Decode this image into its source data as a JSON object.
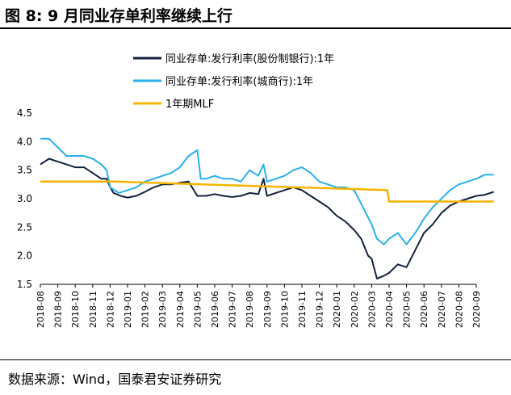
{
  "header": {
    "title": "图 8:  9 月同业存单利率继续上行"
  },
  "footer": {
    "source": "数据来源：Wind，国泰君安证券研究"
  },
  "colors": {
    "navy": "#14213d",
    "lightblue": "#2ab0ea",
    "gold": "#f5b400"
  },
  "chart_data": {
    "type": "line",
    "ylim": [
      1.5,
      4.5
    ],
    "yticks": [
      "1.5",
      "2.0",
      "2.5",
      "3.0",
      "3.5",
      "4.0",
      "4.5"
    ],
    "xticks": [
      "2018-08",
      "2018-09",
      "2018-10",
      "2018-11",
      "2018-12",
      "2019-01",
      "2019-02",
      "2019-03",
      "2019-04",
      "2019-05",
      "2019-06",
      "2019-07",
      "2019-08",
      "2019-09",
      "2019-10",
      "2019-11",
      "2019-12",
      "2020-01",
      "2020-02",
      "2020-03",
      "2020-04",
      "2020-05",
      "2020-06",
      "2020-07",
      "2020-08",
      "2020-09"
    ],
    "legend": "top",
    "series": [
      {
        "name": "同业存单:发行利率(股份制银行):1年",
        "color": "#14213d",
        "x": [
          0,
          0.5,
          1.0,
          1.5,
          2.0,
          2.5,
          3.0,
          3.5,
          3.8,
          4.0,
          4.2,
          4.6,
          5.0,
          5.5,
          6.0,
          6.5,
          7.0,
          7.5,
          8.0,
          8.5,
          9.0,
          9.5,
          10.0,
          10.5,
          11.0,
          11.5,
          12.0,
          12.5,
          12.8,
          13.0,
          13.5,
          14.0,
          14.5,
          15.0,
          15.5,
          16.0,
          16.5,
          17.0,
          17.5,
          18.0,
          18.4,
          18.8,
          19.0,
          19.3,
          19.7,
          20.0,
          20.5,
          21.0,
          21.5,
          22.0,
          22.5,
          23.0,
          23.5,
          24.0,
          24.5,
          25.0,
          25.5,
          26.0
        ],
        "y": [
          3.6,
          3.7,
          3.65,
          3.6,
          3.55,
          3.55,
          3.45,
          3.35,
          3.35,
          3.2,
          3.1,
          3.05,
          3.02,
          3.05,
          3.12,
          3.2,
          3.25,
          3.25,
          3.28,
          3.3,
          3.05,
          3.05,
          3.08,
          3.05,
          3.03,
          3.05,
          3.1,
          3.08,
          3.35,
          3.05,
          3.1,
          3.15,
          3.2,
          3.15,
          3.05,
          2.95,
          2.85,
          2.7,
          2.6,
          2.45,
          2.3,
          2.0,
          1.95,
          1.6,
          1.65,
          1.7,
          1.85,
          1.8,
          2.1,
          2.4,
          2.55,
          2.75,
          2.88,
          2.95,
          3.0,
          3.05,
          3.07,
          3.12
        ]
      },
      {
        "name": "同业存单:发行利率(城商行):1年",
        "color": "#2ab0ea",
        "x": [
          0,
          0.5,
          1.0,
          1.5,
          2.0,
          2.5,
          3.0,
          3.5,
          3.8,
          4.0,
          4.5,
          5.0,
          5.5,
          6.0,
          6.5,
          7.0,
          7.5,
          8.0,
          8.5,
          9.0,
          9.2,
          9.5,
          10.0,
          10.5,
          11.0,
          11.5,
          12.0,
          12.5,
          12.8,
          13.0,
          13.5,
          14.0,
          14.5,
          15.0,
          15.5,
          16.0,
          16.5,
          17.0,
          17.5,
          18.0,
          18.5,
          19.0,
          19.3,
          19.7,
          20.0,
          20.5,
          21.0,
          21.5,
          22.0,
          22.5,
          23.0,
          23.5,
          24.0,
          24.5,
          25.0,
          25.5,
          26.0
        ],
        "y": [
          4.05,
          4.05,
          3.9,
          3.75,
          3.75,
          3.75,
          3.7,
          3.6,
          3.5,
          3.2,
          3.1,
          3.15,
          3.2,
          3.3,
          3.35,
          3.4,
          3.45,
          3.55,
          3.75,
          3.85,
          3.35,
          3.35,
          3.4,
          3.35,
          3.35,
          3.3,
          3.5,
          3.4,
          3.6,
          3.3,
          3.35,
          3.4,
          3.5,
          3.55,
          3.45,
          3.3,
          3.25,
          3.2,
          3.2,
          3.15,
          2.85,
          2.55,
          2.3,
          2.2,
          2.3,
          2.4,
          2.2,
          2.4,
          2.65,
          2.85,
          3.0,
          3.15,
          3.25,
          3.3,
          3.35,
          3.42,
          3.42
        ]
      },
      {
        "name": "1年期MLF",
        "color": "#f5b400",
        "x": [
          0,
          4.0,
          4.2,
          19.9,
          20.0,
          26.0
        ],
        "y": [
          3.3,
          3.3,
          3.3,
          3.15,
          2.95,
          2.95
        ]
      }
    ]
  }
}
